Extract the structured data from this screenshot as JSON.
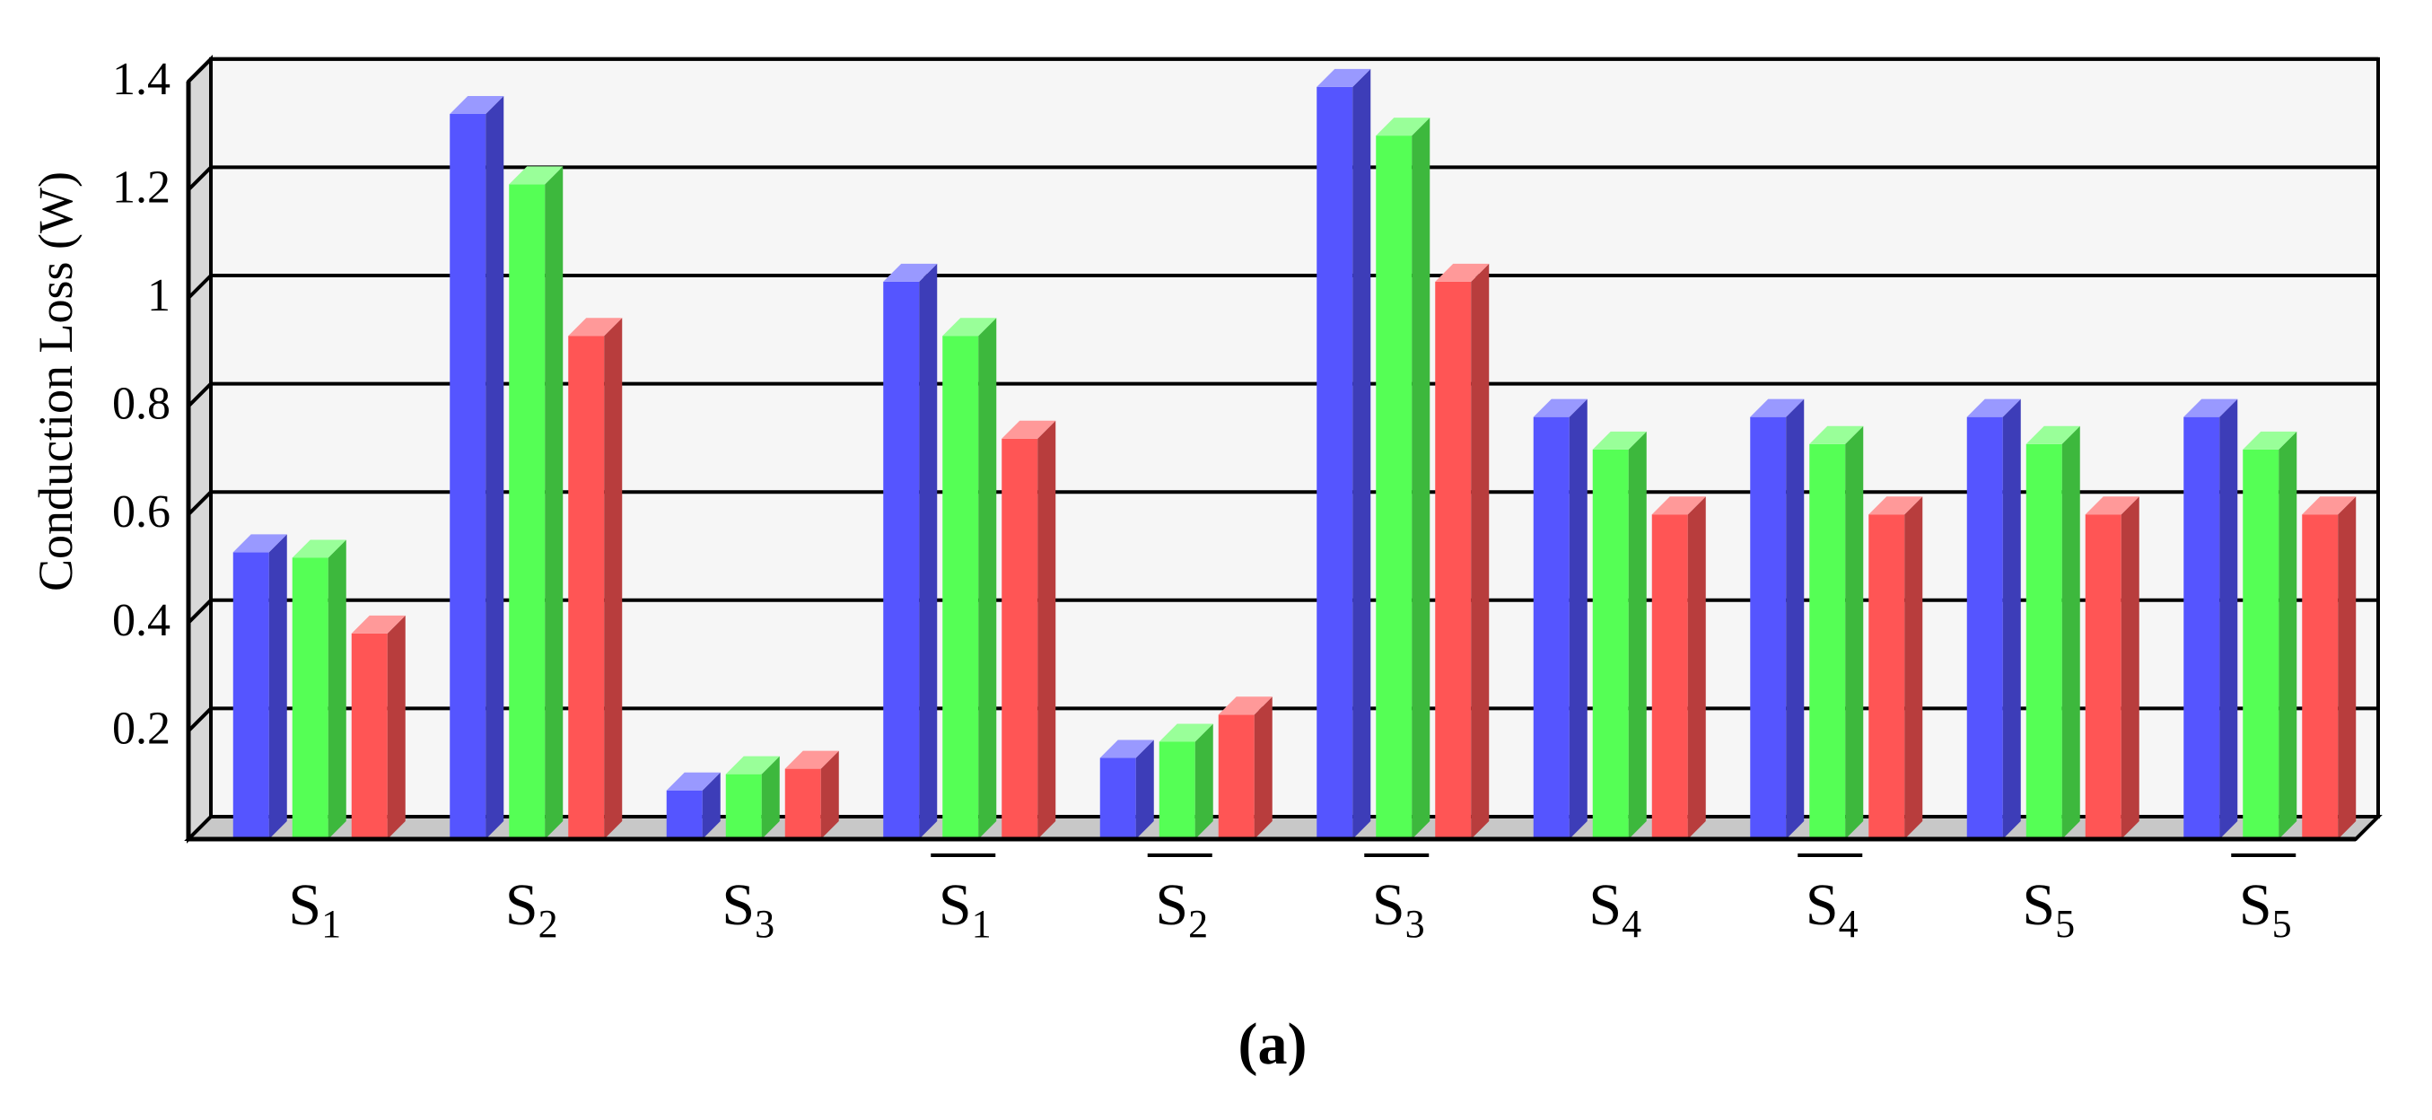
{
  "chart_data": {
    "type": "bar",
    "style": "3d-clustered-bar",
    "ylabel": "Conduction Loss (W)",
    "xlabel": "",
    "ylim": [
      0,
      1.4
    ],
    "yticks": [
      "0.2",
      "0.4",
      "0.6",
      "0.8",
      "1",
      "1.2",
      "1.4"
    ],
    "grid": true,
    "legend": "none",
    "categories": [
      {
        "label": "S",
        "sub": "1",
        "overline": false
      },
      {
        "label": "S",
        "sub": "2",
        "overline": false
      },
      {
        "label": "S",
        "sub": "3",
        "overline": false
      },
      {
        "label": "S",
        "sub": "1",
        "overline": true
      },
      {
        "label": "S",
        "sub": "2",
        "overline": true
      },
      {
        "label": "S",
        "sub": "3",
        "overline": true
      },
      {
        "label": "S",
        "sub": "4",
        "overline": false
      },
      {
        "label": "S",
        "sub": "4",
        "overline": true
      },
      {
        "label": "S",
        "sub": "5",
        "overline": false
      },
      {
        "label": "S",
        "sub": "5",
        "overline": true
      }
    ],
    "series": [
      {
        "color": "#5555ff",
        "values": [
          0.53,
          1.34,
          0.09,
          1.03,
          0.15,
          1.39,
          0.78,
          0.78,
          0.78,
          0.78
        ]
      },
      {
        "color": "#55ff55",
        "values": [
          0.52,
          1.21,
          0.12,
          0.93,
          0.18,
          1.3,
          0.72,
          0.73,
          0.73,
          0.72
        ]
      },
      {
        "color": "#ff5555",
        "values": [
          0.38,
          0.93,
          0.13,
          0.74,
          0.23,
          1.03,
          0.6,
          0.6,
          0.6,
          0.6
        ]
      }
    ]
  },
  "caption": "(a)"
}
